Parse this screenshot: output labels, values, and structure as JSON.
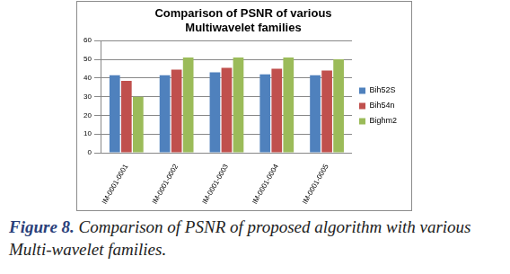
{
  "chart_data": {
    "type": "bar",
    "title": [
      "Comparison of PSNR of various",
      "Multiwavelet families"
    ],
    "categories": [
      "IM-0001-0001",
      "IM-0001-0002",
      "IM-0001-0003",
      "IM-0001-0004",
      "IM-0001-0005"
    ],
    "series": [
      {
        "name": "Bih52S",
        "color": "#4f81bd",
        "values": [
          41.5,
          41.5,
          43,
          42,
          41.5
        ]
      },
      {
        "name": "Bih54n",
        "color": "#c0504d",
        "values": [
          38.5,
          44.5,
          45.5,
          45,
          44
        ]
      },
      {
        "name": "Bighm2",
        "color": "#9bbb59",
        "values": [
          30,
          51,
          51,
          51,
          50
        ]
      }
    ],
    "ylim": [
      0,
      60
    ],
    "yticks": [
      0,
      10,
      20,
      30,
      40,
      50,
      60
    ],
    "grid": true,
    "legend": "right"
  },
  "caption": {
    "label": "Figure 8.",
    "text": "Comparison of PSNR of proposed algorithm with various Multi-wavelet families."
  }
}
